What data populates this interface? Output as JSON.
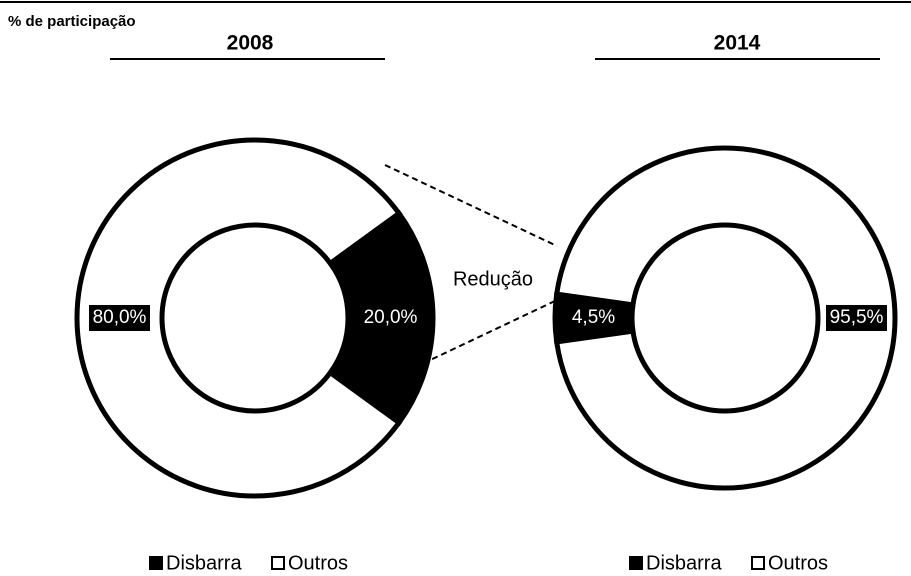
{
  "chart_data": [
    {
      "type": "donut",
      "title": "% de participação",
      "subtitle": "2008",
      "annotation": "Redução",
      "categories": [
        "Disbarra",
        "Outros"
      ],
      "values": [
        20,
        80
      ],
      "value_labels": [
        "20,0%",
        "80,0%"
      ],
      "colors": [
        "#000000",
        "#ffffff"
      ]
    },
    {
      "type": "donut",
      "subtitle": "2014",
      "categories": [
        "Disbarra",
        "Outros"
      ],
      "values": [
        4.5,
        95.5
      ],
      "value_labels": [
        "4,5%",
        "95,5%"
      ],
      "colors": [
        "#000000",
        "#ffffff"
      ]
    }
  ]
}
